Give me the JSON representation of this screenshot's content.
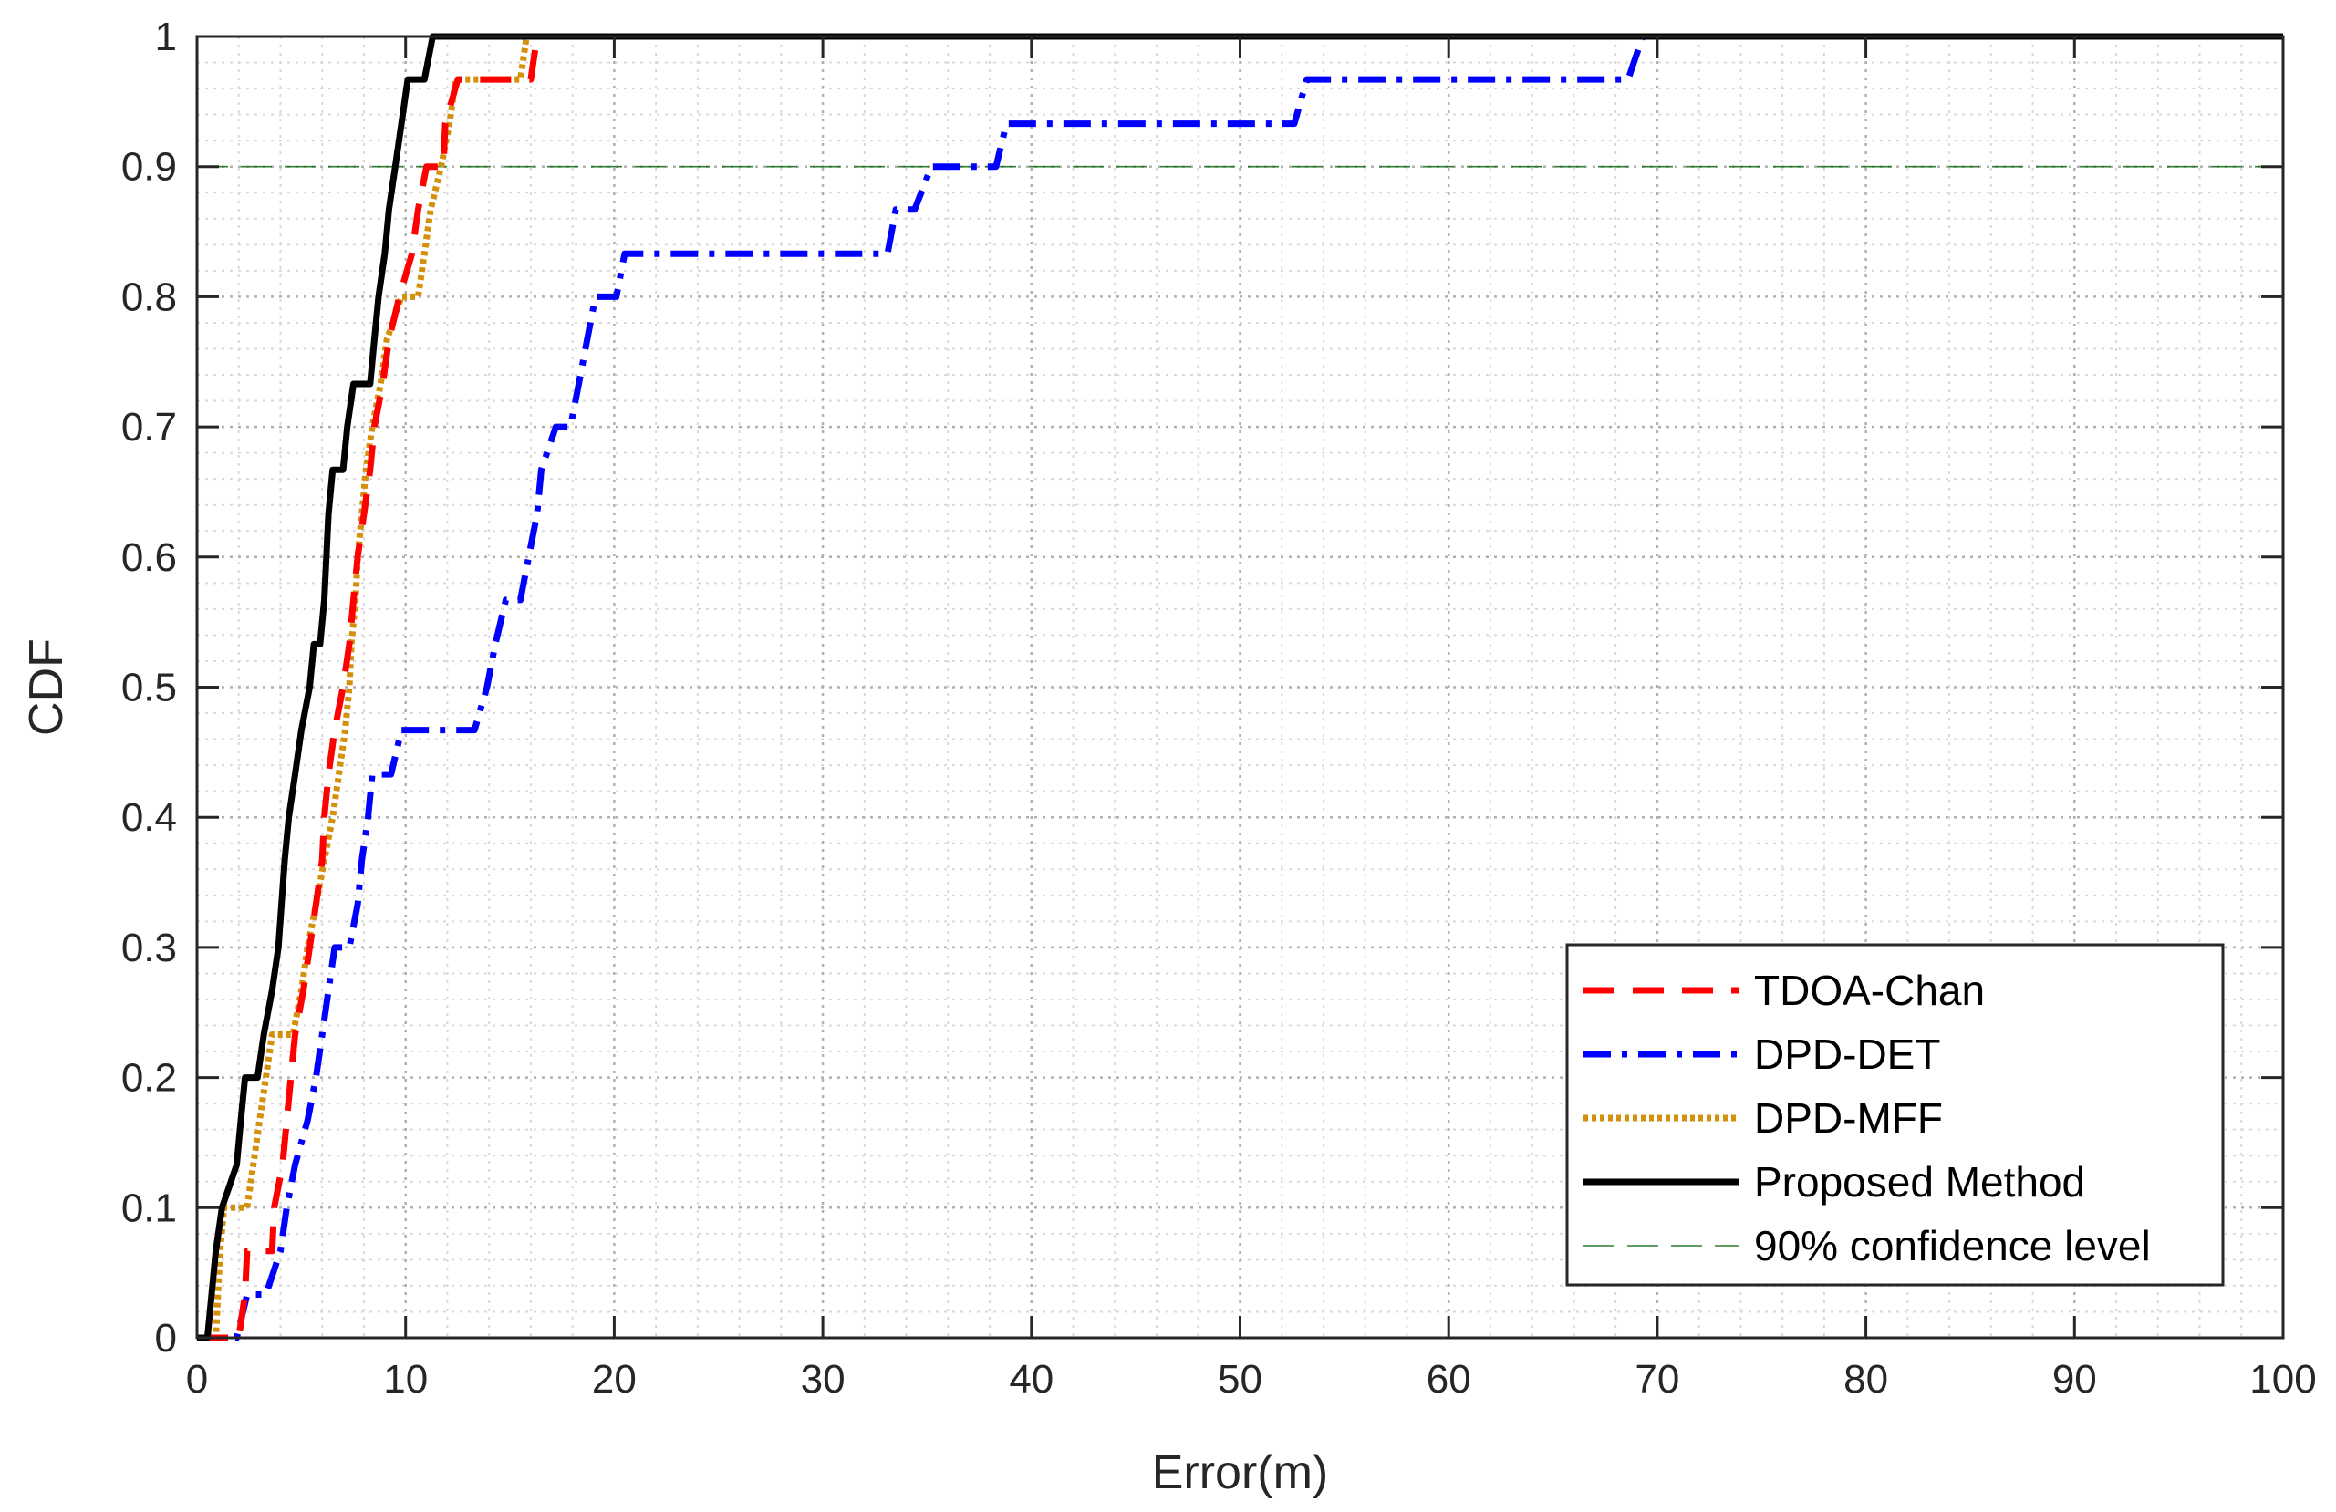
{
  "chart_data": {
    "type": "line",
    "title": "",
    "xlabel": "Error(m)",
    "ylabel": "CDF",
    "xlim": [
      0,
      100
    ],
    "ylim": [
      0,
      1
    ],
    "x_ticks": [
      "0",
      "10",
      "20",
      "30",
      "40",
      "50",
      "60",
      "70",
      "80",
      "90",
      "100"
    ],
    "y_ticks": [
      "0",
      "0.1",
      "0.2",
      "0.3",
      "0.4",
      "0.5",
      "0.6",
      "0.7",
      "0.8",
      "0.9",
      "1"
    ],
    "grid": true,
    "minor_grid": true,
    "legend_position": "bottom-right",
    "series": [
      {
        "name": "TDOA-Chan",
        "color": "#ff0000",
        "style": "dashed",
        "points": [
          [
            0,
            0
          ],
          [
            2.0,
            0
          ],
          [
            2.3,
            0.0333
          ],
          [
            2.4,
            0.0667
          ],
          [
            3.6,
            0.0667
          ],
          [
            3.7,
            0.1
          ],
          [
            4.1,
            0.133
          ],
          [
            4.3,
            0.167
          ],
          [
            4.5,
            0.2
          ],
          [
            4.7,
            0.233
          ],
          [
            5.1,
            0.267
          ],
          [
            5.4,
            0.3
          ],
          [
            5.7,
            0.333
          ],
          [
            6.0,
            0.367
          ],
          [
            6.1,
            0.4
          ],
          [
            6.3,
            0.433
          ],
          [
            6.6,
            0.467
          ],
          [
            7.0,
            0.5
          ],
          [
            7.3,
            0.533
          ],
          [
            7.5,
            0.567
          ],
          [
            7.7,
            0.6
          ],
          [
            8.0,
            0.633
          ],
          [
            8.3,
            0.667
          ],
          [
            8.5,
            0.7
          ],
          [
            8.9,
            0.733
          ],
          [
            9.2,
            0.767
          ],
          [
            9.7,
            0.8
          ],
          [
            10.3,
            0.833
          ],
          [
            10.6,
            0.867
          ],
          [
            11.0,
            0.9
          ],
          [
            11.8,
            0.9
          ],
          [
            11.9,
            0.933
          ],
          [
            12.5,
            0.967
          ],
          [
            16.0,
            0.967
          ],
          [
            16.3,
            1.0
          ],
          [
            100,
            1.0
          ]
        ]
      },
      {
        "name": "DPD-DET",
        "color": "#0000ff",
        "style": "dashdot",
        "points": [
          [
            0,
            0
          ],
          [
            1.9,
            0
          ],
          [
            2.4,
            0.0333
          ],
          [
            3.3,
            0.0333
          ],
          [
            4.0,
            0.0667
          ],
          [
            4.3,
            0.1
          ],
          [
            4.7,
            0.133
          ],
          [
            5.3,
            0.167
          ],
          [
            5.7,
            0.2
          ],
          [
            6.0,
            0.233
          ],
          [
            6.3,
            0.267
          ],
          [
            6.6,
            0.3
          ],
          [
            7.3,
            0.3
          ],
          [
            7.7,
            0.333
          ],
          [
            7.9,
            0.367
          ],
          [
            8.2,
            0.4
          ],
          [
            8.4,
            0.433
          ],
          [
            9.3,
            0.433
          ],
          [
            9.8,
            0.467
          ],
          [
            13.3,
            0.467
          ],
          [
            13.9,
            0.5
          ],
          [
            14.3,
            0.533
          ],
          [
            14.8,
            0.567
          ],
          [
            15.5,
            0.567
          ],
          [
            15.9,
            0.6
          ],
          [
            16.3,
            0.633
          ],
          [
            16.5,
            0.667
          ],
          [
            17.2,
            0.7
          ],
          [
            17.9,
            0.7
          ],
          [
            18.3,
            0.733
          ],
          [
            18.7,
            0.767
          ],
          [
            19.1,
            0.8
          ],
          [
            20.1,
            0.8
          ],
          [
            20.5,
            0.833
          ],
          [
            33.1,
            0.833
          ],
          [
            33.5,
            0.867
          ],
          [
            34.4,
            0.867
          ],
          [
            35.2,
            0.9
          ],
          [
            38.3,
            0.9
          ],
          [
            38.8,
            0.933
          ],
          [
            52.6,
            0.933
          ],
          [
            53.2,
            0.967
          ],
          [
            68.6,
            0.967
          ],
          [
            69.3,
            1.0
          ],
          [
            100,
            1.0
          ]
        ]
      },
      {
        "name": "DPD-MFF",
        "color": "#d4900a",
        "style": "dotted",
        "points": [
          [
            0,
            0
          ],
          [
            0.9,
            0
          ],
          [
            1.1,
            0.0667
          ],
          [
            1.3,
            0.1
          ],
          [
            2.4,
            0.1
          ],
          [
            2.7,
            0.133
          ],
          [
            3.0,
            0.167
          ],
          [
            3.3,
            0.2
          ],
          [
            3.6,
            0.233
          ],
          [
            4.6,
            0.233
          ],
          [
            5.0,
            0.267
          ],
          [
            5.3,
            0.3
          ],
          [
            5.7,
            0.333
          ],
          [
            6.1,
            0.367
          ],
          [
            6.5,
            0.4
          ],
          [
            6.8,
            0.433
          ],
          [
            7.1,
            0.467
          ],
          [
            7.3,
            0.5
          ],
          [
            7.4,
            0.533
          ],
          [
            7.6,
            0.567
          ],
          [
            7.7,
            0.6
          ],
          [
            7.9,
            0.633
          ],
          [
            8.1,
            0.667
          ],
          [
            8.4,
            0.7
          ],
          [
            8.8,
            0.733
          ],
          [
            9.1,
            0.767
          ],
          [
            9.8,
            0.8
          ],
          [
            10.6,
            0.8
          ],
          [
            10.9,
            0.833
          ],
          [
            11.2,
            0.867
          ],
          [
            11.7,
            0.9
          ],
          [
            12.1,
            0.933
          ],
          [
            12.4,
            0.967
          ],
          [
            15.5,
            0.967
          ],
          [
            15.8,
            1.0
          ],
          [
            100,
            1.0
          ]
        ]
      },
      {
        "name": "Proposed Method",
        "color": "#000000",
        "style": "solid",
        "points": [
          [
            0,
            0
          ],
          [
            0.5,
            0
          ],
          [
            0.9,
            0.0667
          ],
          [
            1.2,
            0.1
          ],
          [
            1.9,
            0.133
          ],
          [
            2.1,
            0.167
          ],
          [
            2.3,
            0.2
          ],
          [
            2.9,
            0.2
          ],
          [
            3.2,
            0.233
          ],
          [
            3.6,
            0.267
          ],
          [
            3.9,
            0.3
          ],
          [
            4.2,
            0.367
          ],
          [
            4.4,
            0.4
          ],
          [
            4.7,
            0.433
          ],
          [
            5.0,
            0.467
          ],
          [
            5.4,
            0.5
          ],
          [
            5.6,
            0.533
          ],
          [
            5.9,
            0.533
          ],
          [
            6.1,
            0.567
          ],
          [
            6.3,
            0.633
          ],
          [
            6.5,
            0.667
          ],
          [
            7.0,
            0.667
          ],
          [
            7.2,
            0.7
          ],
          [
            7.5,
            0.733
          ],
          [
            8.3,
            0.733
          ],
          [
            8.5,
            0.767
          ],
          [
            8.7,
            0.8
          ],
          [
            9.0,
            0.833
          ],
          [
            9.2,
            0.867
          ],
          [
            9.5,
            0.9
          ],
          [
            9.8,
            0.933
          ],
          [
            10.1,
            0.967
          ],
          [
            10.9,
            0.967
          ],
          [
            11.3,
            1.0
          ],
          [
            100,
            1.0
          ]
        ]
      },
      {
        "name": "90% confidence level",
        "color": "#2e7d2e",
        "style": "longdash",
        "points": [
          [
            0,
            0.9
          ],
          [
            100,
            0.9
          ]
        ]
      }
    ]
  }
}
